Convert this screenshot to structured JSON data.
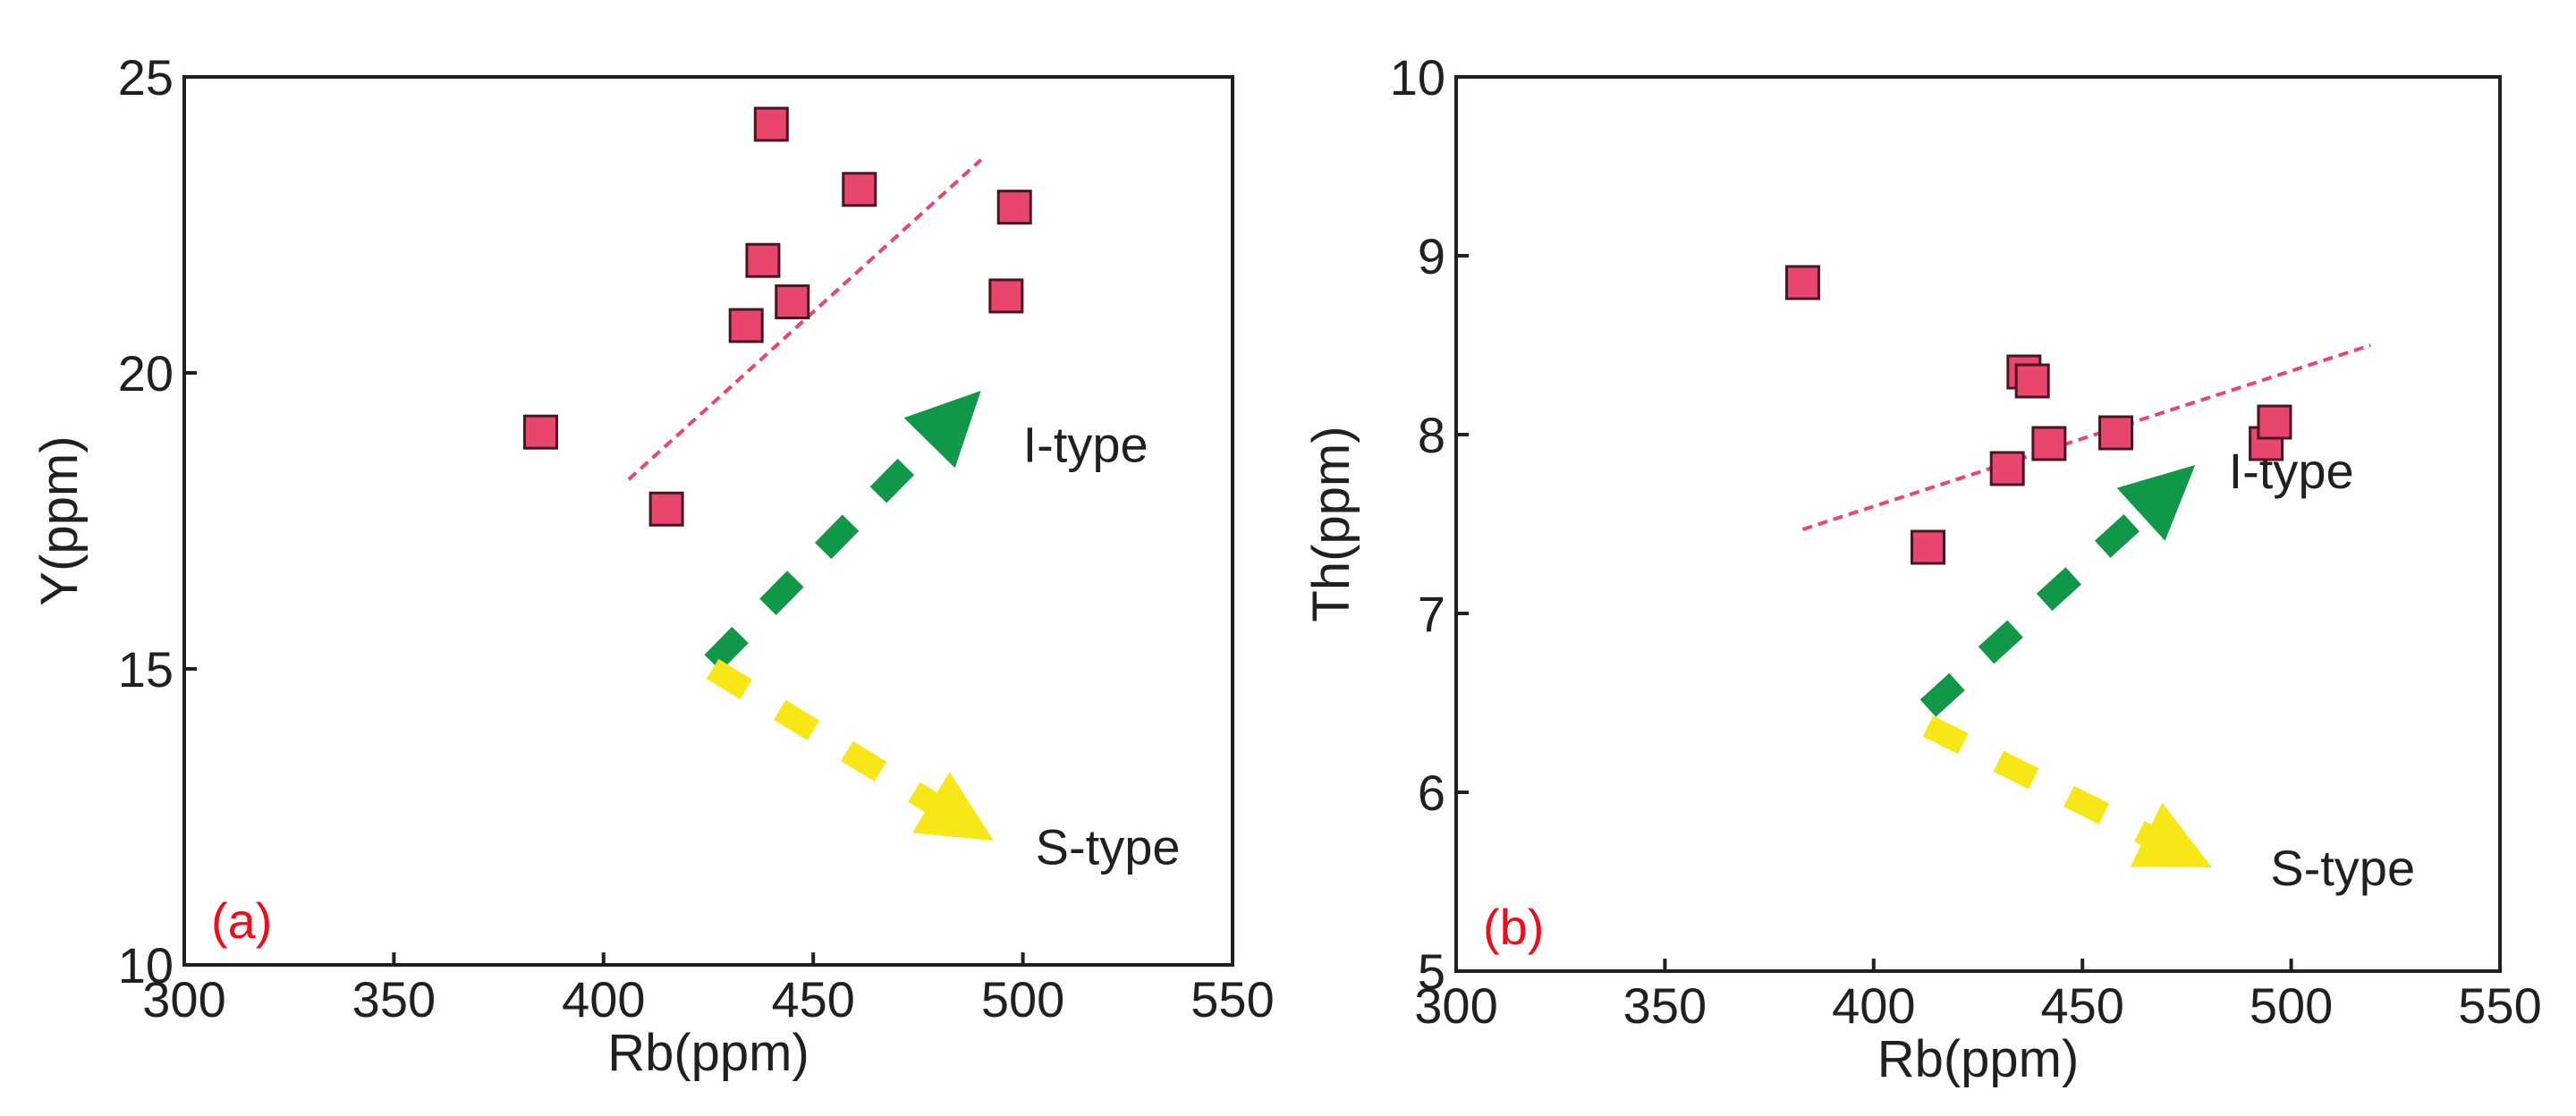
{
  "colors": {
    "marker_fill": "#e8466d",
    "marker_edge": "#4a1522",
    "trend_line": "#e8466d",
    "i_type_arrow": "#109848",
    "s_type_arrow": "#f7e716",
    "panel_tag": "#e8101e",
    "axis": "#231f20",
    "text": "#231f20"
  },
  "chart_data": [
    {
      "panel": "a",
      "type": "scatter",
      "panel_tag": "(a)",
      "xlabel": "Rb(ppm)",
      "ylabel": "Y(ppm)",
      "xlim": [
        300,
        550
      ],
      "ylim": [
        10,
        25
      ],
      "xticks": [
        "300",
        "350",
        "400",
        "450",
        "500",
        "550"
      ],
      "xtick_values": [
        300,
        350,
        400,
        450,
        500,
        550
      ],
      "yticks": [
        "10",
        "15",
        "20",
        "25"
      ],
      "ytick_values": [
        10,
        15,
        20,
        25
      ],
      "grid": false,
      "points": [
        {
          "x": 385,
          "y": 19.0
        },
        {
          "x": 415,
          "y": 17.7
        },
        {
          "x": 434,
          "y": 20.8
        },
        {
          "x": 438,
          "y": 21.9
        },
        {
          "x": 440,
          "y": 24.2
        },
        {
          "x": 445,
          "y": 21.2
        },
        {
          "x": 461,
          "y": 23.1
        },
        {
          "x": 496,
          "y": 21.3
        },
        {
          "x": 498,
          "y": 22.8
        }
      ],
      "trend_line": {
        "x": [
          406,
          490
        ],
        "y": [
          18.2,
          23.6
        ]
      },
      "i_type_arrow": {
        "from": {
          "x": 426,
          "y": 15.1
        },
        "to": {
          "x": 490,
          "y": 19.7
        },
        "label": "I-type",
        "label_at": {
          "x": 500,
          "y": 18.8
        }
      },
      "s_type_arrow": {
        "from": {
          "x": 426,
          "y": 15.0
        },
        "to": {
          "x": 493,
          "y": 12.1
        },
        "label": "S-type",
        "label_at": {
          "x": 503,
          "y": 12.0
        }
      }
    },
    {
      "panel": "b",
      "type": "scatter",
      "panel_tag": "(b)",
      "xlabel": "Rb(ppm)",
      "ylabel": "Th(ppm)",
      "xlim": [
        300,
        550
      ],
      "ylim": [
        5,
        10
      ],
      "xticks": [
        "300",
        "350",
        "400",
        "450",
        "500",
        "550"
      ],
      "xtick_values": [
        300,
        350,
        400,
        450,
        500,
        550
      ],
      "yticks": [
        "5",
        "6",
        "7",
        "8",
        "9",
        "10"
      ],
      "ytick_values": [
        5,
        6,
        7,
        8,
        9,
        10
      ],
      "grid": false,
      "points": [
        {
          "x": 383,
          "y": 8.85
        },
        {
          "x": 413,
          "y": 7.37
        },
        {
          "x": 432,
          "y": 7.81
        },
        {
          "x": 436,
          "y": 8.35
        },
        {
          "x": 438,
          "y": 8.3
        },
        {
          "x": 442,
          "y": 7.95
        },
        {
          "x": 458,
          "y": 8.01
        },
        {
          "x": 494,
          "y": 7.95
        },
        {
          "x": 496,
          "y": 8.07
        }
      ],
      "trend_line": {
        "x": [
          383,
          519
        ],
        "y": [
          7.47,
          8.5
        ]
      },
      "i_type_arrow": {
        "from": {
          "x": 413,
          "y": 6.47
        },
        "to": {
          "x": 477,
          "y": 7.83
        },
        "label": "I-type",
        "label_at": {
          "x": 485,
          "y": 7.8
        }
      },
      "s_type_arrow": {
        "from": {
          "x": 413,
          "y": 6.37
        },
        "to": {
          "x": 481,
          "y": 5.58
        },
        "label": "S-type",
        "label_at": {
          "x": 495,
          "y": 5.58
        }
      }
    }
  ]
}
